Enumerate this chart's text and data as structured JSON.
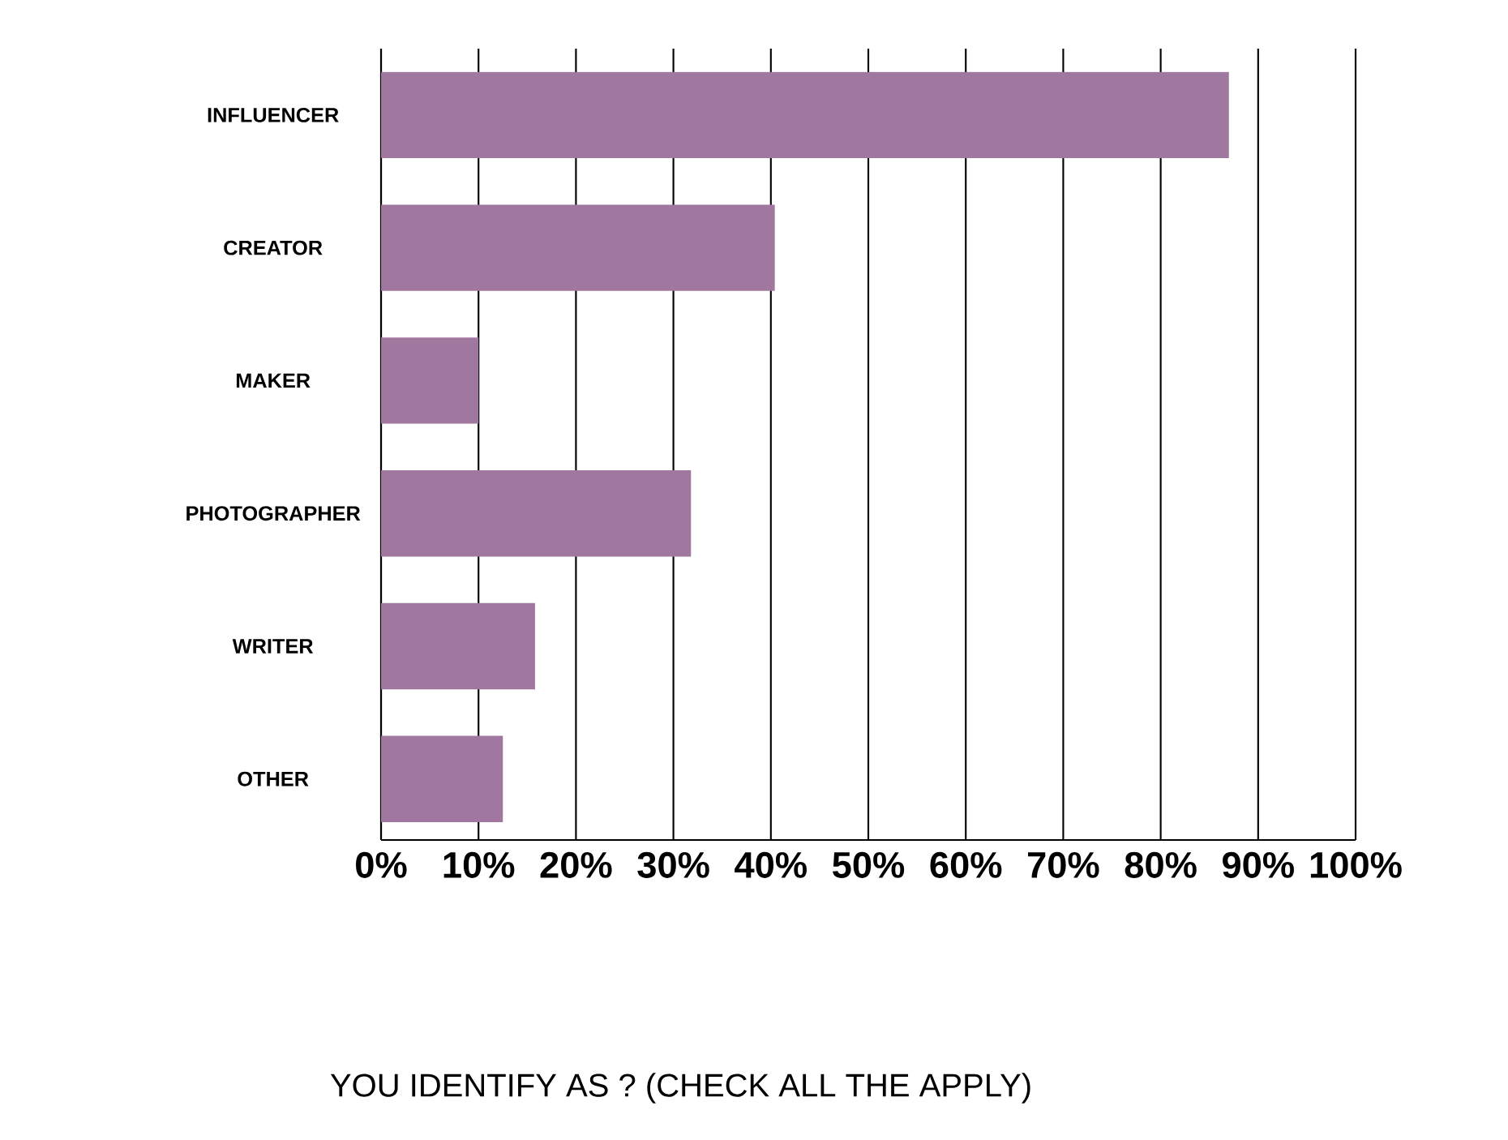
{
  "chart_data": {
    "type": "bar",
    "orientation": "horizontal",
    "title": "YOU IDENTIFY AS ? (CHECK ALL THE APPLY)",
    "categories": [
      "INFLUENCER",
      "CREATOR",
      "MAKER",
      "PHOTOGRAPHER",
      "WRITER",
      "OTHER"
    ],
    "values": [
      87,
      40.4,
      10,
      31.8,
      15.8,
      12.5
    ],
    "color": "#a0779f",
    "xlim": [
      0,
      100
    ],
    "xticks": [
      {
        "value": 0,
        "label": "0%"
      },
      {
        "value": 10,
        "label": "10%"
      },
      {
        "value": 20,
        "label": "20%"
      },
      {
        "value": 30,
        "label": "30%"
      },
      {
        "value": 40,
        "label": "40%"
      },
      {
        "value": 50,
        "label": "50%"
      },
      {
        "value": 60,
        "label": "60%"
      },
      {
        "value": 70,
        "label": "70%"
      },
      {
        "value": 80,
        "label": "80%"
      },
      {
        "value": 90,
        "label": "90%"
      },
      {
        "value": 100,
        "label": "100%"
      }
    ],
    "grid": "x"
  }
}
